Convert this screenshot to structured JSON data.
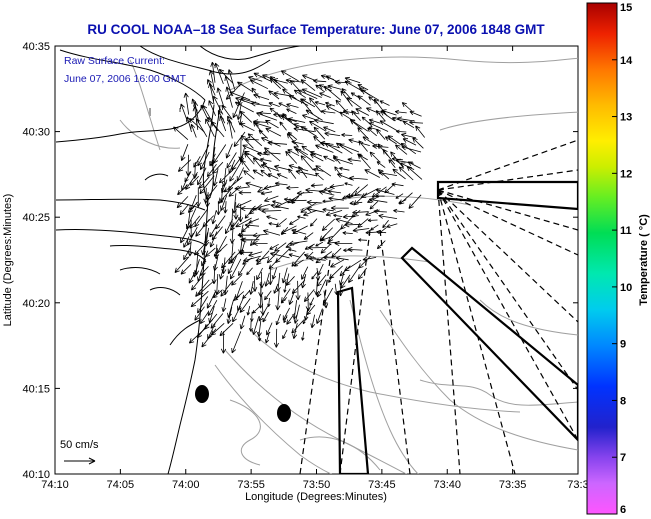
{
  "title": "RU COOL  NOAA–18  Sea Surface Temperature:  June 07, 2006 1848 GMT",
  "inset": {
    "line1": "Raw Surface Current:",
    "line2": "June 07, 2006 16:00 GMT"
  },
  "scale_label": "50 cm/s",
  "axes": {
    "xlabel": "Longitude (Degrees:Minutes)",
    "ylabel": "Latitude (Degrees:Minutes)",
    "x_ticks": [
      "74:10",
      "74:05",
      "74:00",
      "73:55",
      "73:50",
      "73:45",
      "73:40",
      "73:35",
      "73:3"
    ],
    "y_ticks": [
      "40:35",
      "40:30",
      "40:25",
      "40:20",
      "40:15",
      "40:10"
    ]
  },
  "colorbar": {
    "label": "Temperature ( °C)",
    "ticks": [
      "15",
      "14",
      "13",
      "12",
      "11",
      "10",
      "9",
      "8",
      "7",
      "6"
    ],
    "min": 6,
    "max": 15
  },
  "colors": {
    "title": "#0a10b0",
    "inset_text": "#1a1ab4",
    "coastline": "#000000",
    "bathymetry": "#a0a0a0",
    "vectors": "#000000"
  },
  "chart_data": {
    "type": "vector-field map",
    "title": "RU COOL  NOAA–18  Sea Surface Temperature:  June 07, 2006 1848 GMT",
    "xlabel": "Longitude (Degrees:Minutes)",
    "ylabel": "Latitude (Degrees:Minutes)",
    "xlim": [
      "74:10",
      "73:30"
    ],
    "ylim": [
      "40:10",
      "40:35"
    ],
    "vector_scale": "50 cm/s",
    "colorbar_range": [
      6,
      15
    ],
    "colorbar_units": "Temperature ( °C)"
  }
}
